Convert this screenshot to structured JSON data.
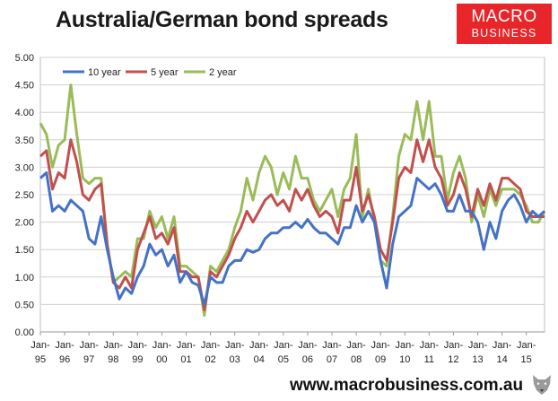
{
  "header": {
    "title": "Australia/German bond spreads",
    "logo_line1": "MACRO",
    "logo_line2": "BUSINESS"
  },
  "footer": {
    "url": "www.macrobusiness.com.au"
  },
  "colors": {
    "logo_bg": "#e8262a"
  },
  "chart_data": {
    "type": "line",
    "title": "Australia/German bond spreads",
    "ylim": [
      0,
      5
    ],
    "yticks": [
      "0.00",
      "0.50",
      "1.00",
      "1.50",
      "2.00",
      "2.50",
      "3.00",
      "3.50",
      "4.00",
      "4.50",
      "5.00"
    ],
    "xlim": [
      1995.0,
      2015.75
    ],
    "xticks": [
      {
        "top": "Jan-",
        "bottom": "95",
        "x": 1995
      },
      {
        "top": "Jan-",
        "bottom": "96",
        "x": 1996
      },
      {
        "top": "Jan-",
        "bottom": "97",
        "x": 1997
      },
      {
        "top": "Jan-",
        "bottom": "98",
        "x": 1998
      },
      {
        "top": "Jan-",
        "bottom": "99",
        "x": 1999
      },
      {
        "top": "Jan-",
        "bottom": "00",
        "x": 2000
      },
      {
        "top": "Jan-",
        "bottom": "01",
        "x": 2001
      },
      {
        "top": "Jan-",
        "bottom": "02",
        "x": 2002
      },
      {
        "top": "Jan-",
        "bottom": "03",
        "x": 2003
      },
      {
        "top": "Jan-",
        "bottom": "04",
        "x": 2004
      },
      {
        "top": "Jan-",
        "bottom": "05",
        "x": 2005
      },
      {
        "top": "Jan-",
        "bottom": "06",
        "x": 2006
      },
      {
        "top": "Jan-",
        "bottom": "07",
        "x": 2007
      },
      {
        "top": "Jan-",
        "bottom": "08",
        "x": 2008
      },
      {
        "top": "Jan-",
        "bottom": "09",
        "x": 2009
      },
      {
        "top": "Jan-",
        "bottom": "10",
        "x": 2010
      },
      {
        "top": "Jan-",
        "bottom": "11",
        "x": 2011
      },
      {
        "top": "Jan-",
        "bottom": "12",
        "x": 2012
      },
      {
        "top": "Jan-",
        "bottom": "13",
        "x": 2013
      },
      {
        "top": "Jan-",
        "bottom": "14",
        "x": 2014
      },
      {
        "top": "Jan-",
        "bottom": "15",
        "x": 2015
      }
    ],
    "grid": "horizontal",
    "legend": "top-left",
    "series": [
      {
        "name": "10 year",
        "color": "#4472c4",
        "x": [
          1995,
          1995.25,
          1995.5,
          1995.75,
          1996,
          1996.25,
          1996.5,
          1996.75,
          1997,
          1997.25,
          1997.5,
          1997.75,
          1998,
          1998.25,
          1998.5,
          1998.75,
          1999,
          1999.25,
          1999.5,
          1999.75,
          2000,
          2000.25,
          2000.5,
          2000.75,
          2001,
          2001.25,
          2001.5,
          2001.75,
          2002,
          2002.25,
          2002.5,
          2002.75,
          2003,
          2003.25,
          2003.5,
          2003.75,
          2004,
          2004.25,
          2004.5,
          2004.75,
          2005,
          2005.25,
          2005.5,
          2005.75,
          2006,
          2006.25,
          2006.5,
          2006.75,
          2007,
          2007.25,
          2007.5,
          2007.75,
          2008,
          2008.25,
          2008.5,
          2008.75,
          2009,
          2009.25,
          2009.5,
          2009.75,
          2010,
          2010.25,
          2010.5,
          2010.75,
          2011,
          2011.25,
          2011.5,
          2011.75,
          2012,
          2012.25,
          2012.5,
          2012.75,
          2013,
          2013.25,
          2013.5,
          2013.75,
          2014,
          2014.25,
          2014.5,
          2014.75,
          2015,
          2015.25,
          2015.5,
          2015.75
        ],
        "values": [
          2.8,
          2.9,
          2.2,
          2.3,
          2.2,
          2.4,
          2.3,
          2.2,
          1.7,
          1.6,
          2.1,
          1.5,
          1.0,
          0.6,
          0.8,
          0.7,
          1.0,
          1.2,
          1.6,
          1.4,
          1.5,
          1.2,
          1.4,
          0.9,
          1.1,
          0.9,
          0.85,
          0.5,
          1.0,
          0.9,
          0.9,
          1.2,
          1.3,
          1.3,
          1.5,
          1.45,
          1.5,
          1.7,
          1.8,
          1.8,
          1.9,
          1.9,
          2.0,
          1.9,
          2.05,
          1.9,
          1.8,
          1.8,
          1.7,
          1.6,
          1.9,
          1.9,
          2.3,
          2.0,
          2.2,
          2.0,
          1.3,
          0.8,
          1.6,
          2.1,
          2.2,
          2.3,
          2.8,
          2.7,
          2.6,
          2.7,
          2.5,
          2.2,
          2.2,
          2.5,
          2.2,
          2.2,
          2.0,
          1.5,
          2.0,
          1.7,
          2.2,
          2.4,
          2.5,
          2.3,
          2.0,
          2.2,
          2.1,
          2.2
        ]
      },
      {
        "name": "5 year",
        "color": "#c0504d",
        "x": [
          1995,
          1995.25,
          1995.5,
          1995.75,
          1996,
          1996.25,
          1996.5,
          1996.75,
          1997,
          1997.25,
          1997.5,
          1997.75,
          1998,
          1998.25,
          1998.5,
          1998.75,
          1999,
          1999.25,
          1999.5,
          1999.75,
          2000,
          2000.25,
          2000.5,
          2000.75,
          2001,
          2001.25,
          2001.5,
          2001.75,
          2002,
          2002.25,
          2002.5,
          2002.75,
          2003,
          2003.25,
          2003.5,
          2003.75,
          2004,
          2004.25,
          2004.5,
          2004.75,
          2005,
          2005.25,
          2005.5,
          2005.75,
          2006,
          2006.25,
          2006.5,
          2006.75,
          2007,
          2007.25,
          2007.5,
          2007.75,
          2008,
          2008.25,
          2008.5,
          2008.75,
          2009,
          2009.25,
          2009.5,
          2009.75,
          2010,
          2010.25,
          2010.5,
          2010.75,
          2011,
          2011.25,
          2011.5,
          2011.75,
          2012,
          2012.25,
          2012.5,
          2012.75,
          2013,
          2013.25,
          2013.5,
          2013.75,
          2014,
          2014.25,
          2014.5,
          2014.75,
          2015,
          2015.25,
          2015.5,
          2015.75
        ],
        "values": [
          3.2,
          3.3,
          2.6,
          2.9,
          2.8,
          3.5,
          3.1,
          2.5,
          2.4,
          2.6,
          2.7,
          1.6,
          0.9,
          0.8,
          1.0,
          0.8,
          1.5,
          1.8,
          2.1,
          1.7,
          1.8,
          1.6,
          1.9,
          1.1,
          1.1,
          1.0,
          1.0,
          0.4,
          1.1,
          1.0,
          1.2,
          1.4,
          1.7,
          1.9,
          2.2,
          2.0,
          2.2,
          2.4,
          2.5,
          2.3,
          2.4,
          2.2,
          2.6,
          2.4,
          2.6,
          2.3,
          2.1,
          2.2,
          2.1,
          1.8,
          2.4,
          2.4,
          3.0,
          2.2,
          2.5,
          2.1,
          1.5,
          1.3,
          2.0,
          2.8,
          3.0,
          2.9,
          3.5,
          3.1,
          3.5,
          3.0,
          2.8,
          2.3,
          2.5,
          2.9,
          2.6,
          2.1,
          2.6,
          2.3,
          2.7,
          2.4,
          2.8,
          2.8,
          2.7,
          2.6,
          2.2,
          2.1,
          2.1,
          2.1
        ]
      },
      {
        "name": "2 year",
        "color": "#9bbb59",
        "x": [
          1995,
          1995.25,
          1995.5,
          1995.75,
          1996,
          1996.25,
          1996.5,
          1996.75,
          1997,
          1997.25,
          1997.5,
          1997.75,
          1998,
          1998.25,
          1998.5,
          1998.75,
          1999,
          1999.25,
          1999.5,
          1999.75,
          2000,
          2000.25,
          2000.5,
          2000.75,
          2001,
          2001.25,
          2001.5,
          2001.75,
          2002,
          2002.25,
          2002.5,
          2002.75,
          2003,
          2003.25,
          2003.5,
          2003.75,
          2004,
          2004.25,
          2004.5,
          2004.75,
          2005,
          2005.25,
          2005.5,
          2005.75,
          2006,
          2006.25,
          2006.5,
          2006.75,
          2007,
          2007.25,
          2007.5,
          2007.75,
          2008,
          2008.25,
          2008.5,
          2008.75,
          2009,
          2009.25,
          2009.5,
          2009.75,
          2010,
          2010.25,
          2010.5,
          2010.75,
          2011,
          2011.25,
          2011.5,
          2011.75,
          2012,
          2012.25,
          2012.5,
          2012.75,
          2013,
          2013.25,
          2013.5,
          2013.75,
          2014,
          2014.25,
          2014.5,
          2014.75,
          2015,
          2015.25,
          2015.5,
          2015.75
        ],
        "values": [
          3.8,
          3.6,
          3.0,
          3.4,
          3.5,
          4.5,
          3.6,
          2.8,
          2.7,
          2.8,
          2.8,
          1.6,
          0.9,
          1.0,
          1.1,
          1.0,
          1.7,
          1.7,
          2.2,
          1.9,
          2.1,
          1.7,
          2.1,
          1.2,
          1.2,
          1.1,
          1.0,
          0.3,
          1.2,
          1.1,
          1.3,
          1.5,
          1.9,
          2.2,
          2.8,
          2.4,
          2.9,
          3.2,
          3.0,
          2.5,
          2.9,
          2.6,
          3.2,
          2.8,
          2.8,
          2.4,
          2.2,
          2.4,
          2.6,
          2.1,
          2.6,
          2.8,
          3.6,
          2.1,
          2.6,
          2.0,
          1.3,
          1.2,
          2.1,
          3.2,
          3.6,
          3.5,
          4.2,
          3.5,
          4.2,
          3.2,
          3.2,
          2.4,
          2.9,
          3.2,
          2.8,
          2.0,
          2.5,
          2.1,
          2.6,
          2.3,
          2.6,
          2.6,
          2.6,
          2.5,
          2.3,
          2.0,
          2.0,
          2.2
        ]
      }
    ]
  }
}
